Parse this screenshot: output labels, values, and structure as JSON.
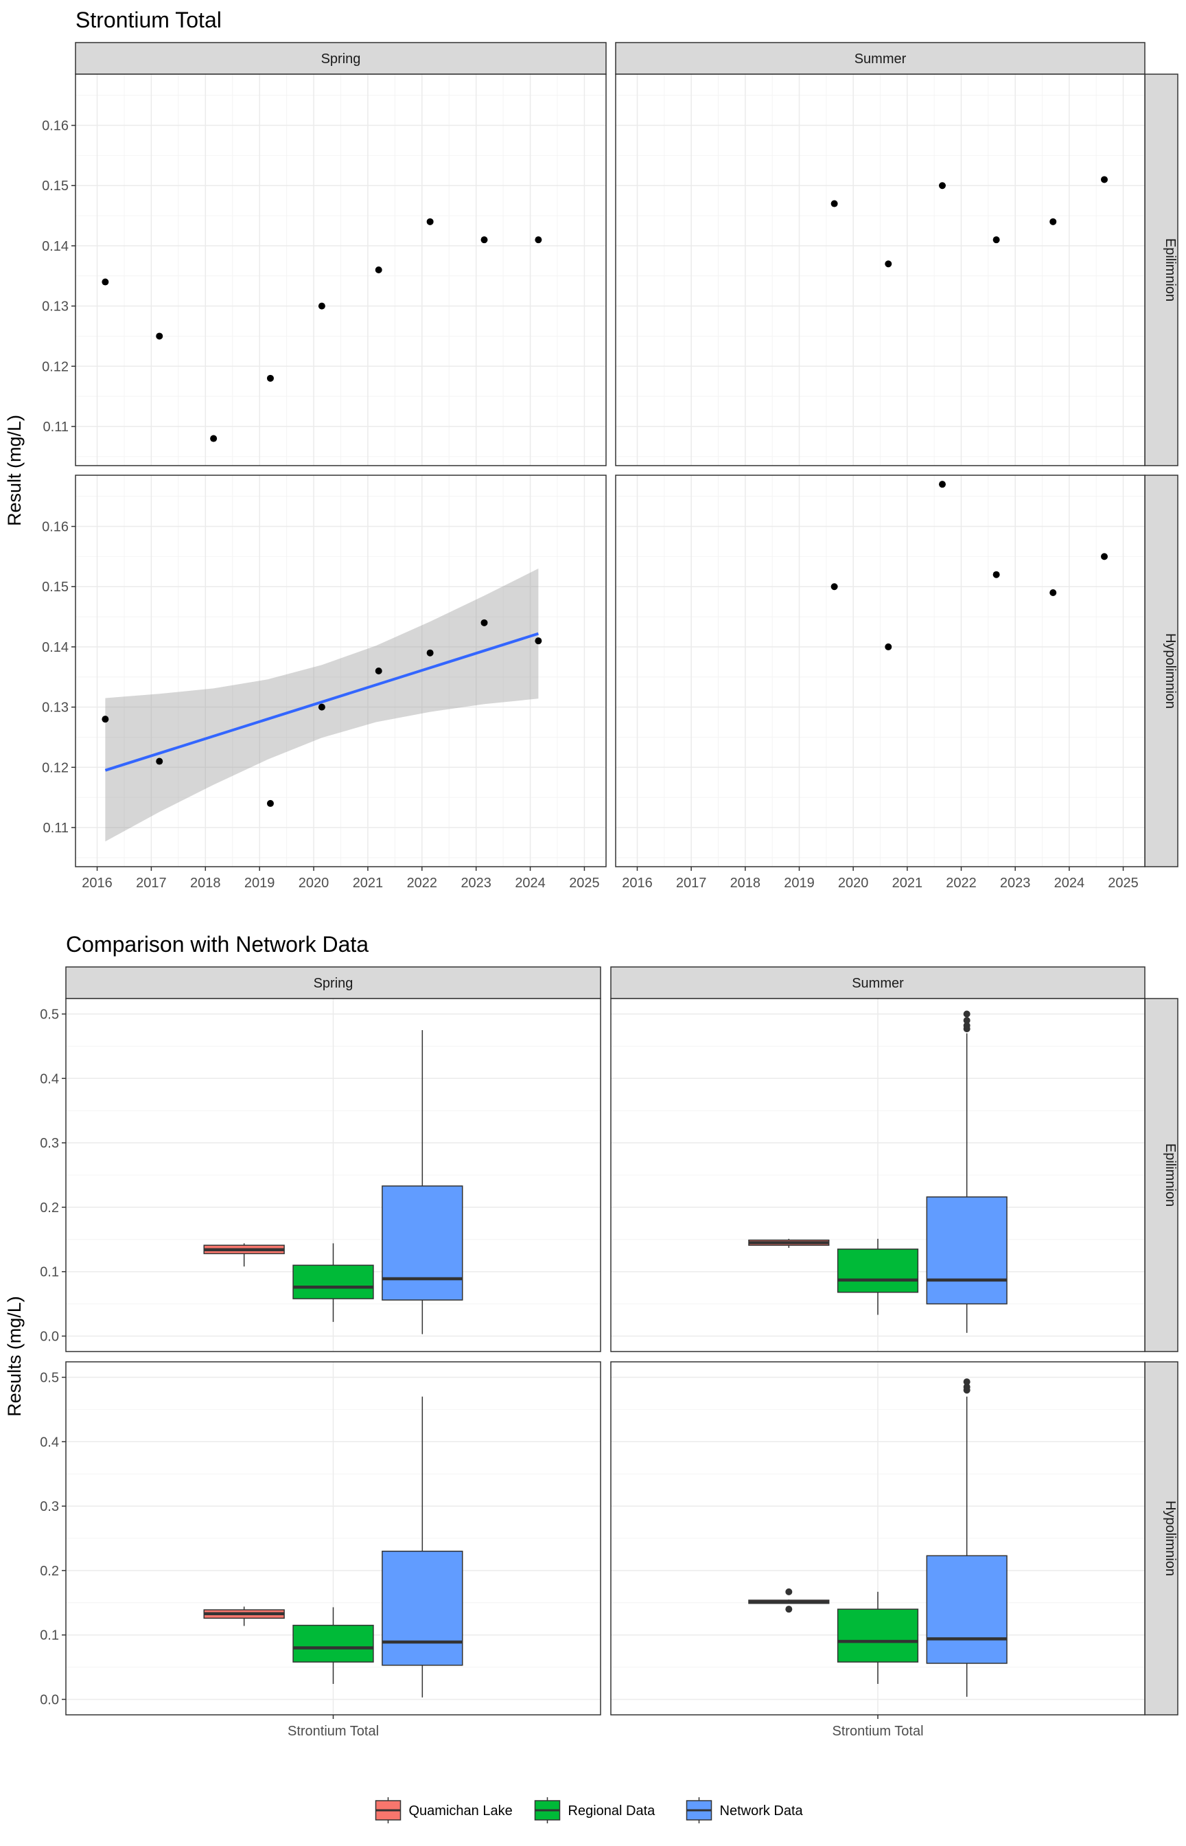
{
  "chart_data": [
    {
      "type": "scatter",
      "title": "Strontium Total",
      "ylabel": "Result (mg/L)",
      "xlabel": "",
      "xlim": [
        2015.6,
        2025.4
      ],
      "x_ticks": [
        "2016",
        "2017",
        "2018",
        "2019",
        "2020",
        "2021",
        "2022",
        "2023",
        "2024",
        "2025"
      ],
      "ylim": [
        0.1035,
        0.1685
      ],
      "y_ticks": [
        "0.11",
        "0.12",
        "0.13",
        "0.14",
        "0.15",
        "0.16"
      ],
      "columns": [
        "Spring",
        "Summer"
      ],
      "rows": [
        "Epilimnion",
        "Hypolimnion"
      ],
      "grid": true,
      "panels": [
        {
          "season": "Spring",
          "layer": "Epilimnion",
          "points": [
            [
              2016.15,
              0.134
            ],
            [
              2017.15,
              0.125
            ],
            [
              2018.15,
              0.108
            ],
            [
              2019.2,
              0.118
            ],
            [
              2020.15,
              0.13
            ],
            [
              2021.2,
              0.136
            ],
            [
              2022.15,
              0.144
            ],
            [
              2023.15,
              0.141
            ],
            [
              2024.15,
              0.141
            ]
          ]
        },
        {
          "season": "Summer",
          "layer": "Epilimnion",
          "points": [
            [
              2019.65,
              0.147
            ],
            [
              2020.65,
              0.137
            ],
            [
              2021.65,
              0.15
            ],
            [
              2022.65,
              0.141
            ],
            [
              2023.7,
              0.144
            ],
            [
              2024.65,
              0.151
            ]
          ]
        },
        {
          "season": "Spring",
          "layer": "Hypolimnion",
          "points": [
            [
              2016.15,
              0.128
            ],
            [
              2017.15,
              0.121
            ],
            [
              2019.2,
              0.114
            ],
            [
              2020.15,
              0.13
            ],
            [
              2021.2,
              0.136
            ],
            [
              2022.15,
              0.139
            ],
            [
              2023.15,
              0.144
            ],
            [
              2024.15,
              0.141
            ]
          ],
          "trend": {
            "x_start": 2016.15,
            "y_start": 0.1195,
            "x_end": 2024.15,
            "y_end": 0.1422,
            "color": "#3366FF",
            "band": [
              [
                2016.15,
                0.1077,
                0.1315
              ],
              [
                2017.15,
                0.1126,
                0.1322
              ],
              [
                2018.15,
                0.1171,
                0.1331
              ],
              [
                2019.15,
                0.1213,
                0.1346
              ],
              [
                2020.15,
                0.1249,
                0.137
              ],
              [
                2021.15,
                0.1275,
                0.1402
              ],
              [
                2022.15,
                0.1292,
                0.1442
              ],
              [
                2023.15,
                0.1305,
                0.1485
              ],
              [
                2024.15,
                0.1314,
                0.153
              ]
            ]
          }
        },
        {
          "season": "Summer",
          "layer": "Hypolimnion",
          "points": [
            [
              2019.65,
              0.15
            ],
            [
              2020.65,
              0.14
            ],
            [
              2021.65,
              0.167
            ],
            [
              2022.65,
              0.152
            ],
            [
              2023.7,
              0.149
            ],
            [
              2024.65,
              0.155
            ]
          ]
        }
      ]
    },
    {
      "type": "box",
      "title": "Comparison with Network Data",
      "ylabel": "Results (mg/L)",
      "xlabel": "",
      "x_tick": "Strontium Total",
      "ylim": [
        -0.024,
        0.524
      ],
      "y_ticks": [
        "0.0",
        "0.1",
        "0.2",
        "0.3",
        "0.4",
        "0.5"
      ],
      "columns": [
        "Spring",
        "Summer"
      ],
      "rows": [
        "Epilimnion",
        "Hypolimnion"
      ],
      "grid": true,
      "legend": {
        "position": "bottom",
        "items": [
          {
            "label": "Quamichan Lake",
            "color": "#F8766D"
          },
          {
            "label": "Regional Data",
            "color": "#00BA38"
          },
          {
            "label": "Network Data",
            "color": "#619CFF"
          }
        ]
      },
      "panels": [
        {
          "season": "Spring",
          "layer": "Epilimnion",
          "boxes": [
            {
              "group": "Quamichan Lake",
              "whisker_low": 0.108,
              "q1": 0.128,
              "median": 0.134,
              "q3": 0.141,
              "whisker_high": 0.144,
              "outliers": []
            },
            {
              "group": "Regional Data",
              "whisker_low": 0.022,
              "q1": 0.058,
              "median": 0.076,
              "q3": 0.11,
              "whisker_high": 0.144,
              "outliers": []
            },
            {
              "group": "Network Data",
              "whisker_low": 0.003,
              "q1": 0.056,
              "median": 0.089,
              "q3": 0.233,
              "whisker_high": 0.475,
              "outliers": []
            }
          ]
        },
        {
          "season": "Summer",
          "layer": "Epilimnion",
          "boxes": [
            {
              "group": "Quamichan Lake",
              "whisker_low": 0.137,
              "q1": 0.141,
              "median": 0.145,
              "q3": 0.149,
              "whisker_high": 0.151,
              "outliers": []
            },
            {
              "group": "Regional Data",
              "whisker_low": 0.033,
              "q1": 0.068,
              "median": 0.087,
              "q3": 0.135,
              "whisker_high": 0.151,
              "outliers": []
            },
            {
              "group": "Network Data",
              "whisker_low": 0.005,
              "q1": 0.05,
              "median": 0.087,
              "q3": 0.216,
              "whisker_high": 0.47,
              "outliers": [
                0.477,
                0.482,
                0.49,
                0.5
              ]
            }
          ]
        },
        {
          "season": "Spring",
          "layer": "Hypolimnion",
          "boxes": [
            {
              "group": "Quamichan Lake",
              "whisker_low": 0.114,
              "q1": 0.126,
              "median": 0.133,
              "q3": 0.139,
              "whisker_high": 0.144,
              "outliers": []
            },
            {
              "group": "Regional Data",
              "whisker_low": 0.024,
              "q1": 0.058,
              "median": 0.08,
              "q3": 0.115,
              "whisker_high": 0.143,
              "outliers": []
            },
            {
              "group": "Network Data",
              "whisker_low": 0.003,
              "q1": 0.053,
              "median": 0.089,
              "q3": 0.23,
              "whisker_high": 0.47,
              "outliers": []
            }
          ]
        },
        {
          "season": "Summer",
          "layer": "Hypolimnion",
          "boxes": [
            {
              "group": "Quamichan Lake",
              "whisker_low": 0.149,
              "q1": 0.149,
              "median": 0.151,
              "q3": 0.154,
              "whisker_high": 0.155,
              "outliers": [
                0.14,
                0.167
              ]
            },
            {
              "group": "Regional Data",
              "whisker_low": 0.024,
              "q1": 0.058,
              "median": 0.09,
              "q3": 0.14,
              "whisker_high": 0.167,
              "outliers": []
            },
            {
              "group": "Network Data",
              "whisker_low": 0.004,
              "q1": 0.056,
              "median": 0.094,
              "q3": 0.223,
              "whisker_high": 0.47,
              "outliers": [
                0.48,
                0.485,
                0.493
              ]
            }
          ]
        }
      ]
    }
  ]
}
